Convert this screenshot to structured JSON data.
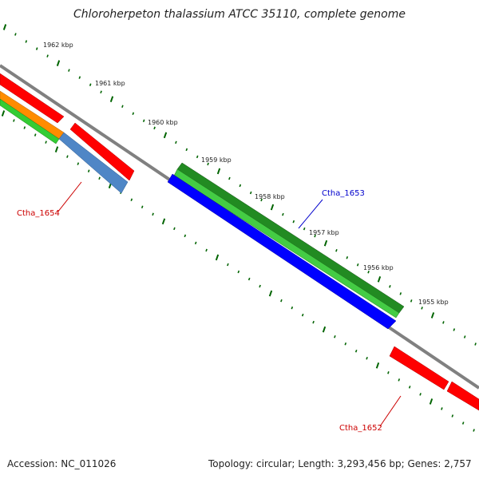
{
  "title": "Chloroherpeton thalassium ATCC 35110, complete genome",
  "footer": {
    "accession": "Accession: NC_011026",
    "summary": "Topology: circular; Length: 3,293,456 bp; Genes: 2,757"
  },
  "ticks": [
    {
      "label": "1962 kbp"
    },
    {
      "label": "1961 kbp"
    },
    {
      "label": "1960 kbp"
    },
    {
      "label": "1959 kbp"
    },
    {
      "label": "1958 kbp"
    },
    {
      "label": "1957 kbp"
    },
    {
      "label": "1956 kbp"
    },
    {
      "label": "1955 kbp"
    }
  ],
  "genes": [
    {
      "name": "Ctha_1654",
      "color": "#cc0000"
    },
    {
      "name": "Ctha_1653",
      "color": "#0000cc"
    },
    {
      "name": "Ctha_1652",
      "color": "#cc0000"
    }
  ],
  "colors": {
    "backbone": "#808080",
    "cds_red": "#ff0000",
    "dark_green": "#228b22",
    "light_green": "#44cc44",
    "blue": "#0000ff",
    "steel_blue": "#4f86c6",
    "orange": "#ff8c00",
    "lime": "#33cc33",
    "tick_green": "#006400"
  }
}
